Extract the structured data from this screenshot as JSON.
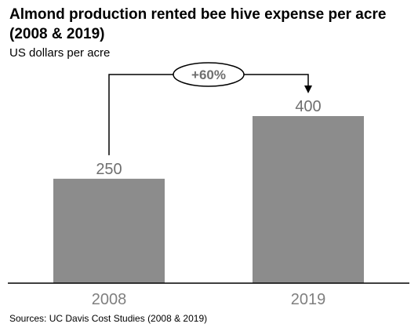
{
  "chart_data": {
    "type": "bar",
    "title": "Almond production rented bee hive expense per acre (2008 & 2019)",
    "subtitle": "US dollars per acre",
    "categories": [
      "2008",
      "2019"
    ],
    "values": [
      250,
      400
    ],
    "data_labels": [
      "250",
      "400"
    ],
    "ylim": [
      0,
      400
    ],
    "bar_color": "#8c8c8c",
    "annotation": "+60%",
    "source": "Sources: UC Davis Cost Studies (2008 & 2019)",
    "grid": false,
    "legend": "none"
  }
}
